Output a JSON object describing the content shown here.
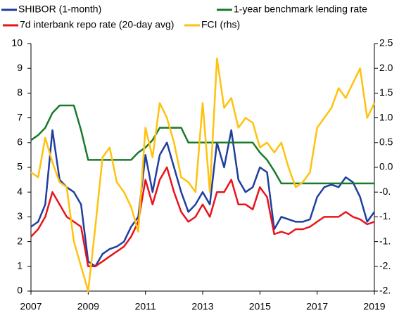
{
  "chart_data": {
    "type": "line",
    "x": [
      2007,
      2007.25,
      2007.5,
      2007.75,
      2008,
      2008.25,
      2008.5,
      2008.75,
      2009,
      2009.25,
      2009.5,
      2009.75,
      2010,
      2010.25,
      2010.5,
      2010.75,
      2011,
      2011.25,
      2011.5,
      2011.75,
      2012,
      2012.25,
      2012.5,
      2012.75,
      2013,
      2013.25,
      2013.5,
      2013.75,
      2014,
      2014.25,
      2014.5,
      2014.75,
      2015,
      2015.25,
      2015.5,
      2015.75,
      2016,
      2016.25,
      2016.5,
      2016.75,
      2017,
      2017.25,
      2017.5,
      2017.75,
      2018,
      2018.25,
      2018.5,
      2018.75,
      2019
    ],
    "xlim": [
      2007,
      2019
    ],
    "xticks": [
      2007,
      2009,
      2011,
      2013,
      2015,
      2017,
      2019
    ],
    "ylim": [
      0,
      10
    ],
    "yticks": [
      0,
      1,
      2,
      3,
      4,
      5,
      6,
      7,
      8,
      9,
      10
    ],
    "y2lim": [
      -2.5,
      2.5
    ],
    "y2ticks": [
      {
        "value": 2.5,
        "label": "2.5"
      },
      {
        "value": 2.0,
        "label": "2.0"
      },
      {
        "value": 1.5,
        "label": "1.5"
      },
      {
        "value": 1.0,
        "label": "1.0"
      },
      {
        "value": 0.5,
        "label": "0.5"
      },
      {
        "value": 0.0,
        "label": "0.0"
      },
      {
        "value": -0.5,
        "label": "-0."
      },
      {
        "value": -1.0,
        "label": "-1."
      },
      {
        "value": -1.5,
        "label": "-1."
      },
      {
        "value": -2.0,
        "label": "-2."
      },
      {
        "value": -2.5,
        "label": "-2."
      }
    ],
    "series": [
      {
        "name": "SHIBOR (1-month)",
        "color": "#1f3f9f",
        "values": [
          2.6,
          2.8,
          3.5,
          6.5,
          4.5,
          4.2,
          4.0,
          3.5,
          1.2,
          1.0,
          1.5,
          1.7,
          1.8,
          2.0,
          2.6,
          3.0,
          5.5,
          4.0,
          5.5,
          6.0,
          5.0,
          4.0,
          3.2,
          3.5,
          4.0,
          3.5,
          6.0,
          5.0,
          6.5,
          4.5,
          4.0,
          4.2,
          5.0,
          4.8,
          2.5,
          3.0,
          2.9,
          2.8,
          2.8,
          2.9,
          3.8,
          4.2,
          4.3,
          4.2,
          4.6,
          4.4,
          3.8,
          2.8,
          3.2
        ]
      },
      {
        "name": "1-year benchmark lending rate",
        "color": "#1a7a2a",
        "values": [
          6.1,
          6.3,
          6.6,
          7.2,
          7.5,
          7.5,
          7.5,
          6.5,
          5.3,
          5.3,
          5.3,
          5.3,
          5.3,
          5.3,
          5.3,
          5.6,
          5.8,
          6.1,
          6.6,
          6.6,
          6.6,
          6.6,
          6.0,
          6.0,
          6.0,
          6.0,
          6.0,
          6.0,
          6.0,
          6.0,
          6.0,
          6.0,
          5.6,
          5.3,
          4.85,
          4.35,
          4.35,
          4.35,
          4.35,
          4.35,
          4.35,
          4.35,
          4.35,
          4.35,
          4.35,
          4.35,
          4.35,
          4.35,
          4.35
        ]
      },
      {
        "name": "7d interbank repo rate (20-day avg)",
        "color": "#e8141a",
        "values": [
          2.2,
          2.5,
          3.0,
          4.0,
          3.5,
          3.0,
          2.8,
          2.6,
          1.0,
          1.0,
          1.2,
          1.4,
          1.6,
          1.8,
          2.2,
          2.8,
          4.5,
          3.5,
          4.5,
          5.0,
          4.0,
          3.2,
          2.8,
          3.0,
          3.5,
          3.0,
          4.0,
          4.0,
          4.5,
          3.5,
          3.5,
          3.3,
          4.2,
          3.8,
          2.3,
          2.4,
          2.3,
          2.5,
          2.5,
          2.6,
          2.8,
          3.0,
          3.0,
          3.0,
          3.2,
          3.0,
          2.9,
          2.7,
          2.8
        ]
      },
      {
        "name": "FCI (rhs)",
        "color": "#ffc20e",
        "axis": "y2",
        "values": [
          -0.1,
          -0.2,
          0.6,
          0.1,
          -0.3,
          -0.4,
          -1.5,
          -2.0,
          -2.5,
          -1.2,
          0.2,
          0.4,
          -0.3,
          -0.5,
          -0.8,
          -1.3,
          0.8,
          0.2,
          1.3,
          1.0,
          0.5,
          -0.2,
          -0.3,
          -0.5,
          1.3,
          -0.5,
          2.2,
          1.2,
          1.4,
          0.8,
          1.0,
          0.9,
          0.4,
          0.5,
          0.3,
          0.5,
          0.0,
          -0.4,
          -0.3,
          -0.1,
          0.8,
          1.0,
          1.2,
          1.6,
          1.4,
          1.7,
          2.0,
          1.0,
          1.3
        ]
      }
    ]
  }
}
